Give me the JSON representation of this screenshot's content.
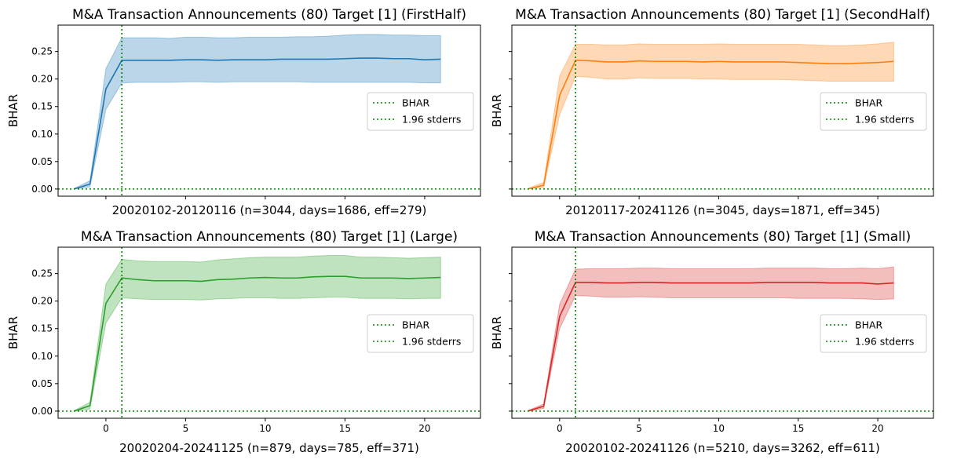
{
  "chart_data": [
    {
      "type": "line",
      "title": "M&A Transaction Announcements (80) Target [1] (FirstHalf)",
      "xlabel": "20020102-20120116 (n=3044, days=1686, eff=279)",
      "ylabel": "BHAR",
      "xlim": [
        -3,
        23.5
      ],
      "ylim": [
        -0.013,
        0.298
      ],
      "xticks": [],
      "xtick_labels": [],
      "yticks": [
        0.0,
        0.05,
        0.1,
        0.15,
        0.2,
        0.25
      ],
      "ytick_labels": [
        "0.00",
        "0.05",
        "0.10",
        "0.15",
        "0.20",
        "0.25"
      ],
      "show_ytick_labels": true,
      "grid": false,
      "legend_position": "center-right",
      "legend": [
        "BHAR",
        "1.96 stderrs"
      ],
      "reference_lines": {
        "vertical_x": 1,
        "horizontal_y": 0,
        "style": "dotted",
        "color": "#008000"
      },
      "series": [
        {
          "name": "BHAR",
          "color": "#1f77b4",
          "x": [
            -2,
            -1,
            0,
            1,
            2,
            3,
            4,
            5,
            6,
            7,
            8,
            9,
            10,
            11,
            12,
            13,
            14,
            15,
            16,
            17,
            18,
            19,
            20,
            21
          ],
          "values": [
            0.0,
            0.009,
            0.182,
            0.234,
            0.234,
            0.234,
            0.234,
            0.235,
            0.235,
            0.234,
            0.235,
            0.235,
            0.235,
            0.236,
            0.236,
            0.236,
            0.236,
            0.237,
            0.238,
            0.238,
            0.237,
            0.237,
            0.235,
            0.236
          ],
          "lower": [
            0.0,
            0.004,
            0.145,
            0.193,
            0.194,
            0.194,
            0.194,
            0.195,
            0.195,
            0.194,
            0.195,
            0.195,
            0.195,
            0.195,
            0.195,
            0.194,
            0.194,
            0.194,
            0.194,
            0.194,
            0.194,
            0.194,
            0.193,
            0.193
          ],
          "upper": [
            0.001,
            0.015,
            0.219,
            0.275,
            0.275,
            0.275,
            0.274,
            0.276,
            0.276,
            0.275,
            0.275,
            0.276,
            0.276,
            0.276,
            0.277,
            0.277,
            0.278,
            0.28,
            0.281,
            0.281,
            0.28,
            0.28,
            0.279,
            0.279
          ]
        }
      ]
    },
    {
      "type": "line",
      "title": "M&A Transaction Announcements (80) Target [1] (SecondHalf)",
      "xlabel": "20120117-20241126 (n=3045, days=1871, eff=345)",
      "ylabel": "BHAR",
      "xlim": [
        -3,
        23.5
      ],
      "ylim": [
        -0.013,
        0.298
      ],
      "xticks": [],
      "xtick_labels": [],
      "yticks": [
        0.0,
        0.05,
        0.1,
        0.15,
        0.2,
        0.25
      ],
      "ytick_labels": [],
      "show_ytick_labels": false,
      "grid": false,
      "legend_position": "center-right",
      "legend": [
        "BHAR",
        "1.96 stderrs"
      ],
      "reference_lines": {
        "vertical_x": 1,
        "horizontal_y": 0,
        "style": "dotted",
        "color": "#008000"
      },
      "series": [
        {
          "name": "BHAR",
          "color": "#ff7f0e",
          "x": [
            -2,
            -1,
            0,
            1,
            2,
            3,
            4,
            5,
            6,
            7,
            8,
            9,
            10,
            11,
            12,
            13,
            14,
            15,
            16,
            17,
            18,
            19,
            20,
            21
          ],
          "values": [
            0.0,
            0.007,
            0.17,
            0.234,
            0.233,
            0.231,
            0.231,
            0.233,
            0.232,
            0.232,
            0.232,
            0.231,
            0.232,
            0.231,
            0.231,
            0.231,
            0.231,
            0.23,
            0.229,
            0.228,
            0.228,
            0.229,
            0.23,
            0.232
          ],
          "lower": [
            0.0,
            0.003,
            0.135,
            0.205,
            0.203,
            0.2,
            0.2,
            0.202,
            0.201,
            0.201,
            0.201,
            0.2,
            0.2,
            0.199,
            0.199,
            0.199,
            0.199,
            0.198,
            0.197,
            0.196,
            0.196,
            0.196,
            0.196,
            0.196
          ],
          "upper": [
            0.001,
            0.012,
            0.205,
            0.263,
            0.263,
            0.262,
            0.262,
            0.264,
            0.263,
            0.263,
            0.263,
            0.263,
            0.264,
            0.263,
            0.263,
            0.263,
            0.263,
            0.263,
            0.262,
            0.261,
            0.261,
            0.262,
            0.264,
            0.267
          ]
        }
      ]
    },
    {
      "type": "line",
      "title": "M&A Transaction Announcements (80) Target [1] (Large)",
      "xlabel": "20020204-20241125 (n=879, days=785, eff=371)",
      "ylabel": "BHAR",
      "xlim": [
        -3,
        23.5
      ],
      "ylim": [
        -0.013,
        0.298
      ],
      "xticks": [
        0,
        5,
        10,
        15,
        20
      ],
      "xtick_labels": [
        "0",
        "5",
        "10",
        "15",
        "20"
      ],
      "yticks": [
        0.0,
        0.05,
        0.1,
        0.15,
        0.2,
        0.25
      ],
      "ytick_labels": [
        "0.00",
        "0.05",
        "0.10",
        "0.15",
        "0.20",
        "0.25"
      ],
      "show_ytick_labels": true,
      "grid": false,
      "legend_position": "center-right",
      "legend": [
        "BHAR",
        "1.96 stderrs"
      ],
      "reference_lines": {
        "vertical_x": 1,
        "horizontal_y": 0,
        "style": "dotted",
        "color": "#008000"
      },
      "series": [
        {
          "name": "BHAR",
          "color": "#2ca02c",
          "x": [
            -2,
            -1,
            0,
            1,
            2,
            3,
            4,
            5,
            6,
            7,
            8,
            9,
            10,
            11,
            12,
            13,
            14,
            15,
            16,
            17,
            18,
            19,
            20,
            21
          ],
          "values": [
            0.0,
            0.01,
            0.196,
            0.242,
            0.239,
            0.237,
            0.237,
            0.237,
            0.236,
            0.239,
            0.24,
            0.242,
            0.243,
            0.242,
            0.242,
            0.244,
            0.245,
            0.245,
            0.242,
            0.242,
            0.242,
            0.241,
            0.242,
            0.243
          ],
          "lower": [
            0.0,
            0.004,
            0.16,
            0.206,
            0.204,
            0.203,
            0.203,
            0.203,
            0.202,
            0.204,
            0.205,
            0.206,
            0.206,
            0.205,
            0.205,
            0.206,
            0.207,
            0.207,
            0.205,
            0.205,
            0.205,
            0.204,
            0.205,
            0.205
          ],
          "upper": [
            0.001,
            0.016,
            0.231,
            0.276,
            0.273,
            0.272,
            0.272,
            0.272,
            0.271,
            0.275,
            0.277,
            0.279,
            0.28,
            0.28,
            0.28,
            0.282,
            0.283,
            0.283,
            0.28,
            0.28,
            0.279,
            0.278,
            0.279,
            0.28
          ]
        }
      ]
    },
    {
      "type": "line",
      "title": "M&A Transaction Announcements (80) Target [1] (Small)",
      "xlabel": "20020102-20241126 (n=5210, days=3262, eff=611)",
      "ylabel": "BHAR",
      "xlim": [
        -3,
        23.5
      ],
      "ylim": [
        -0.013,
        0.298
      ],
      "xticks": [
        0,
        5,
        10,
        15,
        20
      ],
      "xtick_labels": [
        "0",
        "5",
        "10",
        "15",
        "20"
      ],
      "yticks": [
        0.0,
        0.05,
        0.1,
        0.15,
        0.2,
        0.25
      ],
      "ytick_labels": [],
      "show_ytick_labels": false,
      "grid": false,
      "legend_position": "center-right",
      "legend": [
        "BHAR",
        "1.96 stderrs"
      ],
      "reference_lines": {
        "vertical_x": 1,
        "horizontal_y": 0,
        "style": "dotted",
        "color": "#008000"
      },
      "series": [
        {
          "name": "BHAR",
          "color": "#d62728",
          "x": [
            -2,
            -1,
            0,
            1,
            2,
            3,
            4,
            5,
            6,
            7,
            8,
            9,
            10,
            11,
            12,
            13,
            14,
            15,
            16,
            17,
            18,
            19,
            20,
            21
          ],
          "values": [
            0.0,
            0.009,
            0.172,
            0.234,
            0.234,
            0.233,
            0.233,
            0.234,
            0.234,
            0.233,
            0.233,
            0.233,
            0.233,
            0.233,
            0.233,
            0.234,
            0.234,
            0.234,
            0.234,
            0.233,
            0.233,
            0.233,
            0.231,
            0.233
          ],
          "lower": [
            0.0,
            0.005,
            0.15,
            0.21,
            0.209,
            0.207,
            0.207,
            0.208,
            0.207,
            0.206,
            0.206,
            0.206,
            0.206,
            0.206,
            0.206,
            0.206,
            0.206,
            0.205,
            0.205,
            0.205,
            0.205,
            0.204,
            0.203,
            0.204
          ],
          "upper": [
            0.001,
            0.013,
            0.194,
            0.258,
            0.259,
            0.259,
            0.259,
            0.26,
            0.26,
            0.259,
            0.259,
            0.259,
            0.259,
            0.259,
            0.259,
            0.26,
            0.26,
            0.26,
            0.26,
            0.259,
            0.259,
            0.26,
            0.259,
            0.262
          ]
        }
      ]
    }
  ]
}
